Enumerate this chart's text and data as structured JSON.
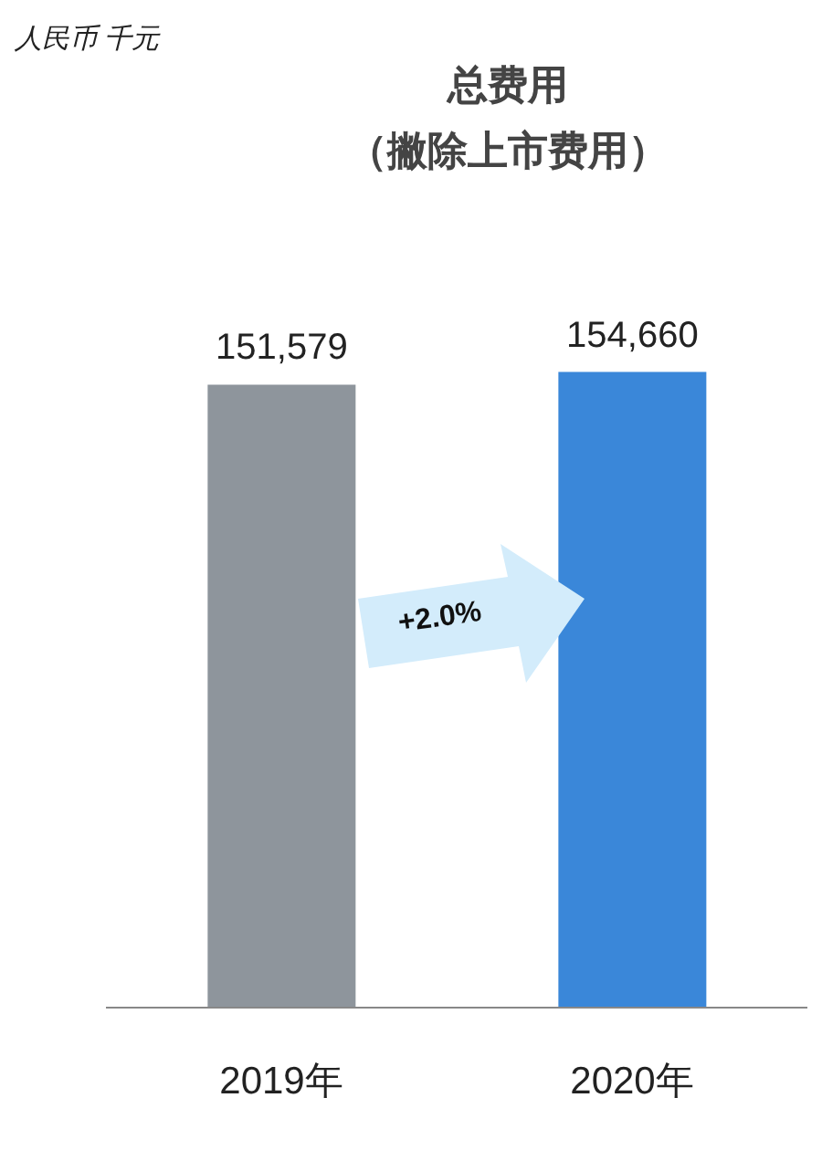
{
  "chart_data": {
    "type": "bar",
    "title": "总费用",
    "subtitle": "（撇除上市费用）",
    "annotations": [
      "人民币 千元",
      "+2.0%"
    ],
    "categories": [
      "2019年",
      "2020年"
    ],
    "values": [
      151579,
      154660
    ],
    "colors": [
      "#8e959c",
      "#3a87d9"
    ],
    "value_labels": [
      "151,579",
      "154,660"
    ]
  }
}
